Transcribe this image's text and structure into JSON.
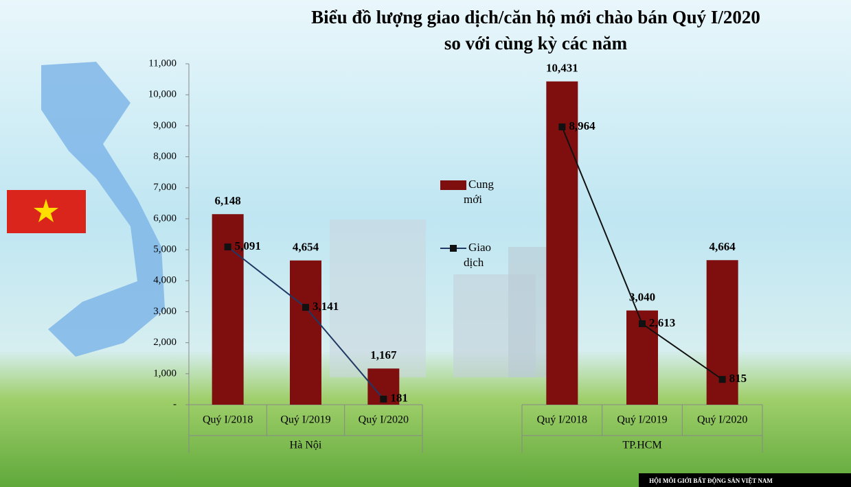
{
  "chart_data": {
    "type": "bar-line",
    "title": "Biểu đồ lượng giao dịch/căn hộ mới chào bán Quý I/2020",
    "subtitle": "so với cùng kỳ các năm",
    "groups": [
      "Hà Nội",
      "TP.HCM"
    ],
    "categories": [
      "Quý I/2018",
      "Quý I/2019",
      "Quý I/2020",
      "Quý I/2018",
      "Quý I/2019",
      "Quý I/2020"
    ],
    "series": [
      {
        "name": "Cung mới",
        "type": "bar",
        "color": "#7f0f0f",
        "values": [
          6148,
          4654,
          1167,
          10431,
          3040,
          4664
        ],
        "value_labels": [
          "6,148",
          "4,654",
          "1,167",
          "10,431",
          "3,040",
          "4,664"
        ]
      },
      {
        "name": "Giao dịch",
        "type": "line",
        "color": "#111111",
        "values": [
          5091,
          3141,
          181,
          8964,
          2613,
          815
        ],
        "value_labels": [
          "5,091",
          "3,141",
          "181",
          "8,964",
          "2,613",
          "815"
        ]
      }
    ],
    "ylim": [
      0,
      11000
    ],
    "yticks": [
      {
        "value": 0,
        "label": "-"
      },
      {
        "value": 1000,
        "label": "1,000"
      },
      {
        "value": 2000,
        "label": "2,000"
      },
      {
        "value": 3000,
        "label": "3,000"
      },
      {
        "value": 4000,
        "label": "4,000"
      },
      {
        "value": 5000,
        "label": "5,000"
      },
      {
        "value": 6000,
        "label": "6,000"
      },
      {
        "value": 7000,
        "label": "7,000"
      },
      {
        "value": 8000,
        "label": "8,000"
      },
      {
        "value": 9000,
        "label": "9,000"
      },
      {
        "value": 10000,
        "label": "10,000"
      },
      {
        "value": 11000,
        "label": "11,000"
      }
    ],
    "footer": "HỘI MÔI GIỚI BẤT ĐỘNG SẢN VIỆT NAM"
  }
}
